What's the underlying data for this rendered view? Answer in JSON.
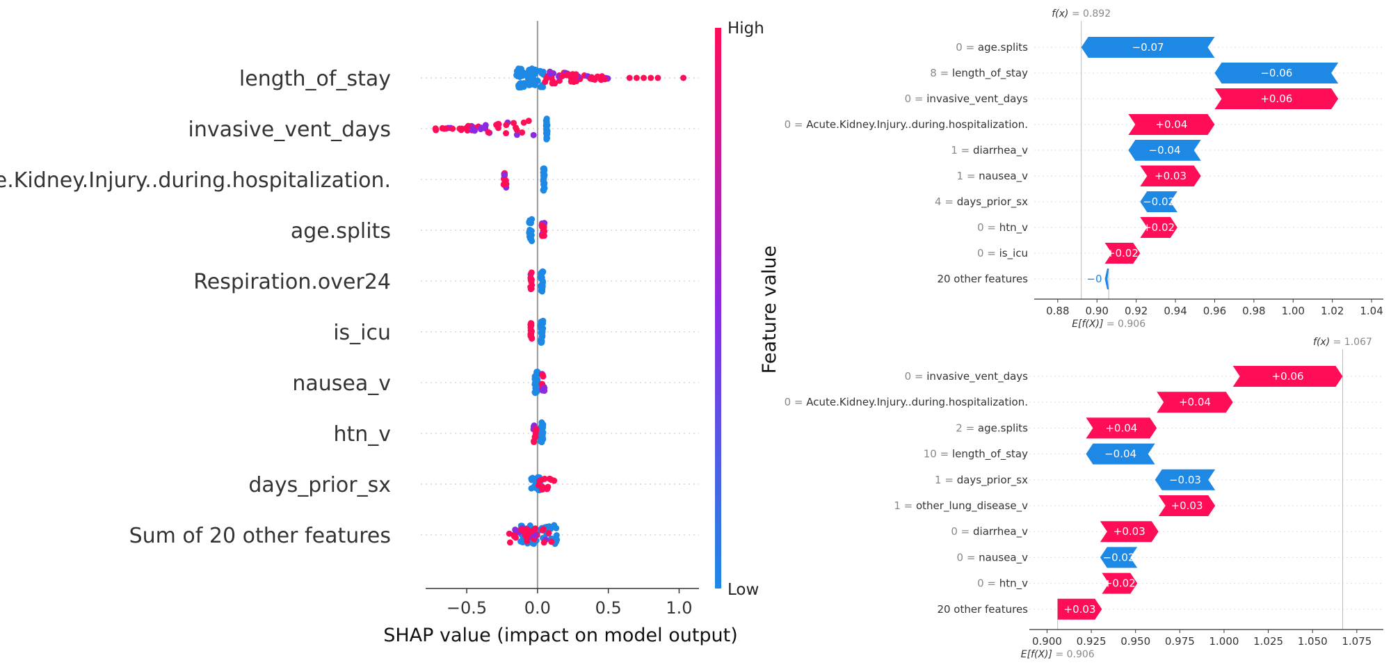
{
  "colors": {
    "positive": "#ff0d57",
    "negative": "#1e88e5",
    "mid": "#8a2be2"
  },
  "chart_data": [
    {
      "type": "scatter",
      "subtype": "shap-beeswarm",
      "xlabel": "SHAP value (impact on model output)",
      "ylabel": "Feature value",
      "colorbar": {
        "high": "High",
        "low": "Low"
      },
      "xlim": [
        -0.8,
        1.15
      ],
      "xticks": [
        "−0.5",
        "0.0",
        "0.5",
        "1.0"
      ],
      "xtick_values": [
        -0.5,
        0.0,
        0.5,
        1.0
      ],
      "features": [
        {
          "name": "length_of_stay",
          "blue": [
            -0.15,
            0.05
          ],
          "pink": [
            0.05,
            0.5
          ],
          "outliers": [
            0.65,
            0.7,
            0.75,
            0.8,
            0.85,
            1.03
          ]
        },
        {
          "name": "invasive_vent_days",
          "blue": [
            0.06,
            0.07
          ],
          "pink": [
            -0.72,
            0.0
          ],
          "outliers": [
            -0.72,
            -0.66,
            -0.6,
            -0.55,
            -0.5
          ]
        },
        {
          "name": "Acute.Kidney.Injury..during.hospitalization.",
          "blue": [
            0.04,
            0.05
          ],
          "pink": [
            -0.24,
            -0.22
          ],
          "outliers": []
        },
        {
          "name": "age.splits",
          "blue": [
            -0.06,
            -0.04
          ],
          "pink": [
            0.03,
            0.05
          ],
          "outliers": []
        },
        {
          "name": "Respiration.over24",
          "blue": [
            0.02,
            0.04
          ],
          "pink": [
            -0.05,
            -0.04
          ],
          "outliers": []
        },
        {
          "name": "is_icu",
          "blue": [
            0.02,
            0.04
          ],
          "pink": [
            -0.05,
            -0.04
          ],
          "outliers": []
        },
        {
          "name": "nausea_v",
          "blue": [
            -0.02,
            0.0
          ],
          "pink": [
            0.03,
            0.05
          ],
          "outliers": []
        },
        {
          "name": "htn_v",
          "blue": [
            0.02,
            0.04
          ],
          "pink": [
            -0.03,
            -0.01
          ],
          "outliers": []
        },
        {
          "name": "days_prior_sx",
          "blue": [
            -0.05,
            0.03
          ],
          "pink": [
            0.0,
            0.12
          ],
          "outliers": []
        },
        {
          "name": "Sum of 20 other features",
          "blue": [
            -0.12,
            0.14
          ],
          "pink": [
            -0.2,
            0.1
          ],
          "outliers": []
        }
      ]
    },
    {
      "type": "bar",
      "subtype": "shap-waterfall",
      "fx_label": "f(x)",
      "fx_value": "= 0.892",
      "fx": 0.892,
      "efx_label": "E[f(X)]",
      "efx_value": "= 0.906",
      "efx": 0.906,
      "xlim": [
        0.868,
        1.046
      ],
      "xticks": [
        "0.88",
        "0.90",
        "0.92",
        "0.94",
        "0.96",
        "0.98",
        "1.00",
        "1.02",
        "1.04"
      ],
      "xtick_values": [
        0.88,
        0.9,
        0.92,
        0.94,
        0.96,
        0.98,
        1.0,
        1.02,
        1.04
      ],
      "rows": [
        {
          "value": "0 =",
          "feature": "age.splits",
          "label": "−0.07",
          "start": 0.96,
          "end": 0.892
        },
        {
          "value": "8 =",
          "feature": "length_of_stay",
          "label": "−0.06",
          "start": 1.023,
          "end": 0.96
        },
        {
          "value": "0 =",
          "feature": "invasive_vent_days",
          "label": "+0.06",
          "start": 0.96,
          "end": 1.023
        },
        {
          "value": "0 =",
          "feature": "Acute.Kidney.Injury..during.hospitalization.",
          "label": "+0.04",
          "start": 0.916,
          "end": 0.96
        },
        {
          "value": "1 =",
          "feature": "diarrhea_v",
          "label": "−0.04",
          "start": 0.953,
          "end": 0.916
        },
        {
          "value": "1 =",
          "feature": "nausea_v",
          "label": "+0.03",
          "start": 0.922,
          "end": 0.953
        },
        {
          "value": "4 =",
          "feature": "days_prior_sx",
          "label": "−0.02",
          "start": 0.941,
          "end": 0.922
        },
        {
          "value": "0 =",
          "feature": "htn_v",
          "label": "+0.02",
          "start": 0.922,
          "end": 0.941
        },
        {
          "value": "0 =",
          "feature": "is_icu",
          "label": "+0.02",
          "start": 0.904,
          "end": 0.922
        },
        {
          "value": "",
          "feature": "20 other features",
          "label": "−0",
          "start": 0.906,
          "end": 0.904
        }
      ]
    },
    {
      "type": "bar",
      "subtype": "shap-waterfall",
      "fx_label": "f(x)",
      "fx_value": "= 1.067",
      "fx": 1.067,
      "efx_label": "E[f(X)]",
      "efx_value": "= 0.906",
      "efx": 0.906,
      "xlim": [
        0.89,
        1.09
      ],
      "xticks": [
        "0.900",
        "0.925",
        "0.950",
        "0.975",
        "1.000",
        "1.025",
        "1.050",
        "1.075"
      ],
      "xtick_values": [
        0.9,
        0.925,
        0.95,
        0.975,
        1.0,
        1.025,
        1.05,
        1.075
      ],
      "rows": [
        {
          "value": "0 =",
          "feature": "invasive_vent_days",
          "label": "+0.06",
          "start": 1.005,
          "end": 1.067
        },
        {
          "value": "0 =",
          "feature": "Acute.Kidney.Injury..during.hospitalization.",
          "label": "+0.04",
          "start": 0.962,
          "end": 1.005
        },
        {
          "value": "2 =",
          "feature": "age.splits",
          "label": "+0.04",
          "start": 0.922,
          "end": 0.962
        },
        {
          "value": "10 =",
          "feature": "length_of_stay",
          "label": "−0.04",
          "start": 0.961,
          "end": 0.922
        },
        {
          "value": "1 =",
          "feature": "days_prior_sx",
          "label": "−0.03",
          "start": 0.995,
          "end": 0.961
        },
        {
          "value": "1 =",
          "feature": "other_lung_disease_v",
          "label": "+0.03",
          "start": 0.963,
          "end": 0.995
        },
        {
          "value": "0 =",
          "feature": "diarrhea_v",
          "label": "+0.03",
          "start": 0.93,
          "end": 0.963
        },
        {
          "value": "0 =",
          "feature": "nausea_v",
          "label": "−0.02",
          "start": 0.951,
          "end": 0.93
        },
        {
          "value": "0 =",
          "feature": "htn_v",
          "label": "+0.02",
          "start": 0.931,
          "end": 0.951
        },
        {
          "value": "",
          "feature": "20 other features",
          "label": "+0.03",
          "start": 0.906,
          "end": 0.931
        }
      ]
    }
  ]
}
